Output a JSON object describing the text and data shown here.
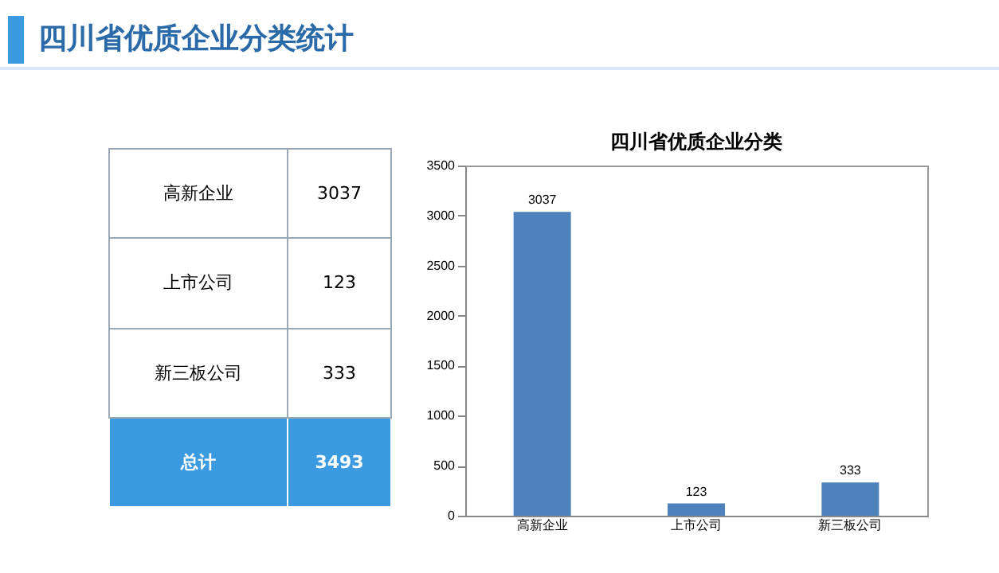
{
  "chart_data": {
    "type": "bar",
    "title": "四川省优质企业分类统计",
    "subtitle": "四川省优质企业分类",
    "categories": [
      "高新企业",
      "上市公司",
      "新三板公司"
    ],
    "values": [
      3037,
      123,
      333
    ],
    "color": "#4f81bd",
    "ylim": [
      0,
      3500
    ],
    "yticks": [
      0,
      500,
      1000,
      1500,
      2000,
      2500,
      3000,
      3500
    ],
    "grid": false,
    "value_labels": [
      "3037",
      "123",
      "333"
    ],
    "annotations": [
      "总计",
      "3493"
    ]
  }
}
